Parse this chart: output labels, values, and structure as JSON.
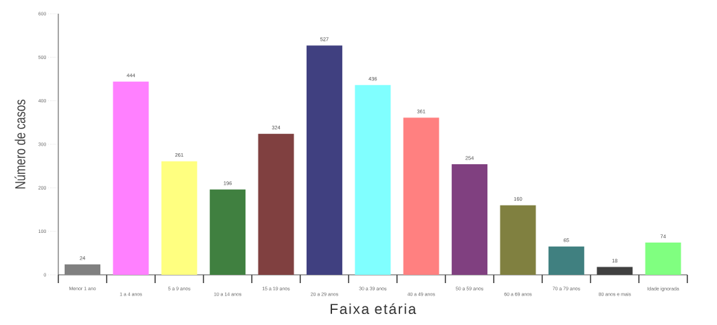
{
  "chart_data": {
    "type": "bar",
    "xlabel": "Faixa etária",
    "ylabel": "Número de casos",
    "categories": [
      "Menor 1 ano",
      "1 a 4 anos",
      "5 a 9 anos",
      "10 a 14 anos",
      "15 a 19 anos",
      "20 a 29 anos",
      "30 a 39 anos",
      "40 a 49 anos",
      "50 a 59 anos",
      "60 a 69 anos",
      "70 a 79 anos",
      "80 anos e mais",
      "Idade ignorada"
    ],
    "values": [
      24,
      444,
      261,
      196,
      324,
      527,
      436,
      361,
      254,
      160,
      65,
      18,
      74
    ],
    "colors": [
      "#808080",
      "#ff80ff",
      "#ffff80",
      "#408040",
      "#804040",
      "#404080",
      "#80ffff",
      "#ff8080",
      "#804080",
      "#808040",
      "#408080",
      "#404040",
      "#80ff80"
    ],
    "ylim": [
      0,
      600
    ],
    "yticks": [
      0,
      100,
      200,
      300,
      400,
      500,
      600
    ],
    "data_labels": true
  }
}
